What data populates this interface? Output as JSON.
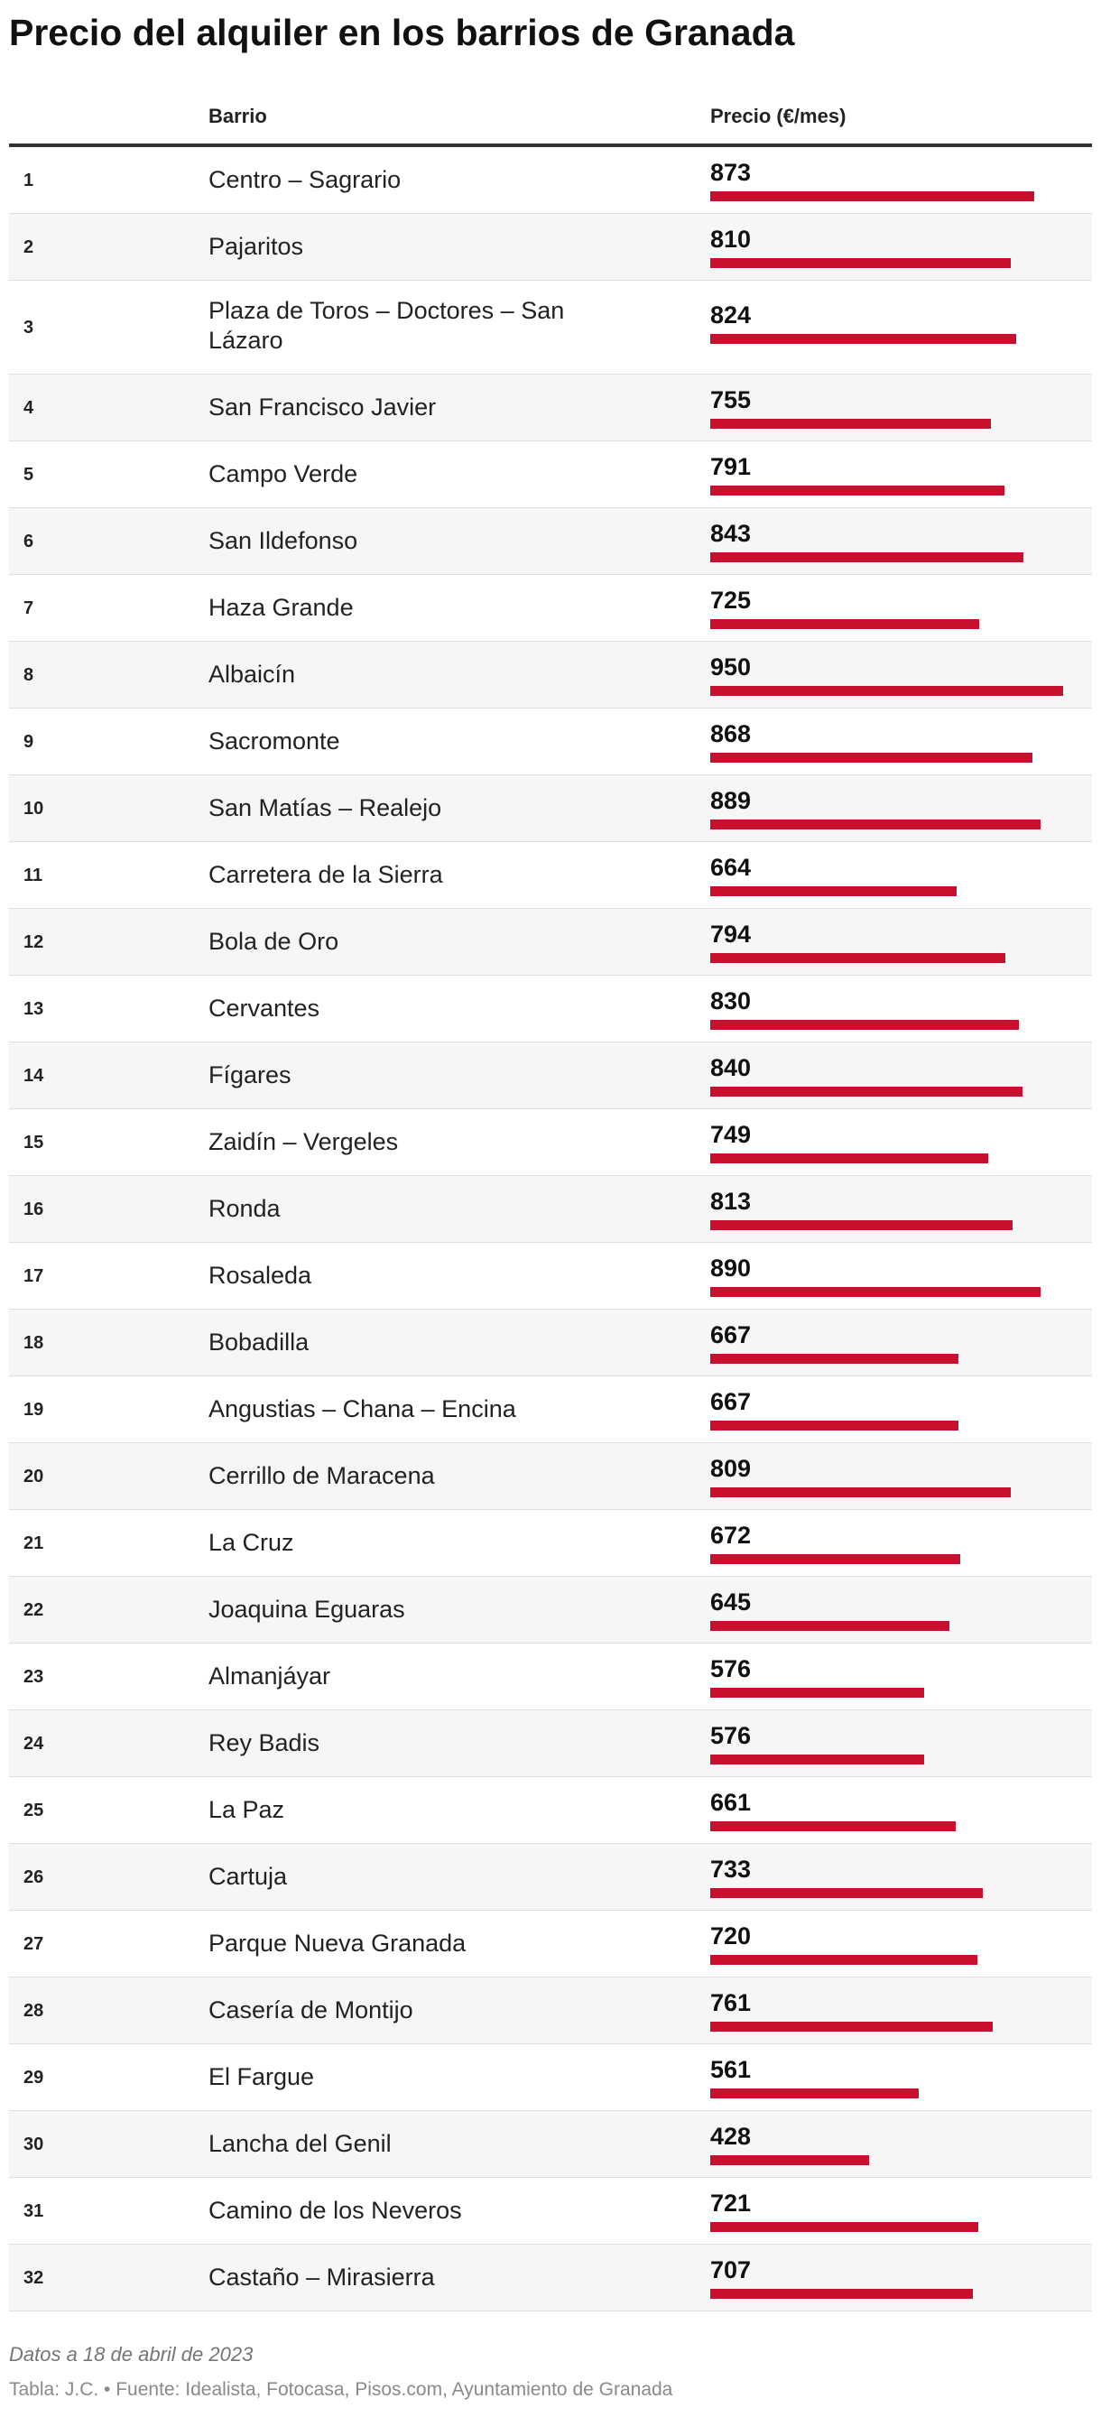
{
  "title": "Precio del alquiler en los barrios de Granada",
  "columns": {
    "barrio": "Barrio",
    "precio": "Precio (€/mes)"
  },
  "colors": {
    "bar": "#c8102e",
    "row_alt": "#f6f6f6"
  },
  "chart_data": {
    "type": "table",
    "max_value": 950,
    "rows": [
      {
        "rank": "1",
        "barrio": "Centro – Sagrario",
        "precio": 873
      },
      {
        "rank": "2",
        "barrio": "Pajaritos",
        "precio": 810
      },
      {
        "rank": "3",
        "barrio": "Plaza de Toros – Doctores – San Lázaro",
        "precio": 824
      },
      {
        "rank": "4",
        "barrio": "San Francisco Javier",
        "precio": 755
      },
      {
        "rank": "5",
        "barrio": "Campo Verde",
        "precio": 791
      },
      {
        "rank": "6",
        "barrio": "San Ildefonso",
        "precio": 843
      },
      {
        "rank": "7",
        "barrio": "Haza Grande",
        "precio": 725
      },
      {
        "rank": "8",
        "barrio": "Albaicín",
        "precio": 950
      },
      {
        "rank": "9",
        "barrio": "Sacromonte",
        "precio": 868
      },
      {
        "rank": "10",
        "barrio": "San Matías – Realejo",
        "precio": 889
      },
      {
        "rank": "11",
        "barrio": "Carretera de la Sierra",
        "precio": 664
      },
      {
        "rank": "12",
        "barrio": "Bola de Oro",
        "precio": 794
      },
      {
        "rank": "13",
        "barrio": "Cervantes",
        "precio": 830
      },
      {
        "rank": "14",
        "barrio": "Fígares",
        "precio": 840
      },
      {
        "rank": "15",
        "barrio": "Zaidín – Vergeles",
        "precio": 749
      },
      {
        "rank": "16",
        "barrio": "Ronda",
        "precio": 813
      },
      {
        "rank": "17",
        "barrio": "Rosaleda",
        "precio": 890
      },
      {
        "rank": "18",
        "barrio": "Bobadilla",
        "precio": 667
      },
      {
        "rank": "19",
        "barrio": "Angustias – Chana – Encina",
        "precio": 667
      },
      {
        "rank": "20",
        "barrio": "Cerrillo de Maracena",
        "precio": 809
      },
      {
        "rank": "21",
        "barrio": "La Cruz",
        "precio": 672
      },
      {
        "rank": "22",
        "barrio": "Joaquina Eguaras",
        "precio": 645
      },
      {
        "rank": "23",
        "barrio": "Almanjáyar",
        "precio": 576
      },
      {
        "rank": "24",
        "barrio": "Rey Badis",
        "precio": 576
      },
      {
        "rank": "25",
        "barrio": "La Paz",
        "precio": 661
      },
      {
        "rank": "26",
        "barrio": "Cartuja",
        "precio": 733
      },
      {
        "rank": "27",
        "barrio": "Parque Nueva Granada",
        "precio": 720
      },
      {
        "rank": "28",
        "barrio": "Casería de Montijo",
        "precio": 761
      },
      {
        "rank": "29",
        "barrio": "El Fargue",
        "precio": 561
      },
      {
        "rank": "30",
        "barrio": "Lancha del Genil",
        "precio": 428
      },
      {
        "rank": "31",
        "barrio": "Camino de los Neveros",
        "precio": 721
      },
      {
        "rank": "32",
        "barrio": "Castaño – Mirasierra",
        "precio": 707
      }
    ]
  },
  "footer": {
    "note": "Datos a 18 de abril de 2023",
    "source": "Tabla: J.C. • Fuente: Idealista, Fotocasa, Pisos.com, Ayuntamiento de Granada"
  }
}
